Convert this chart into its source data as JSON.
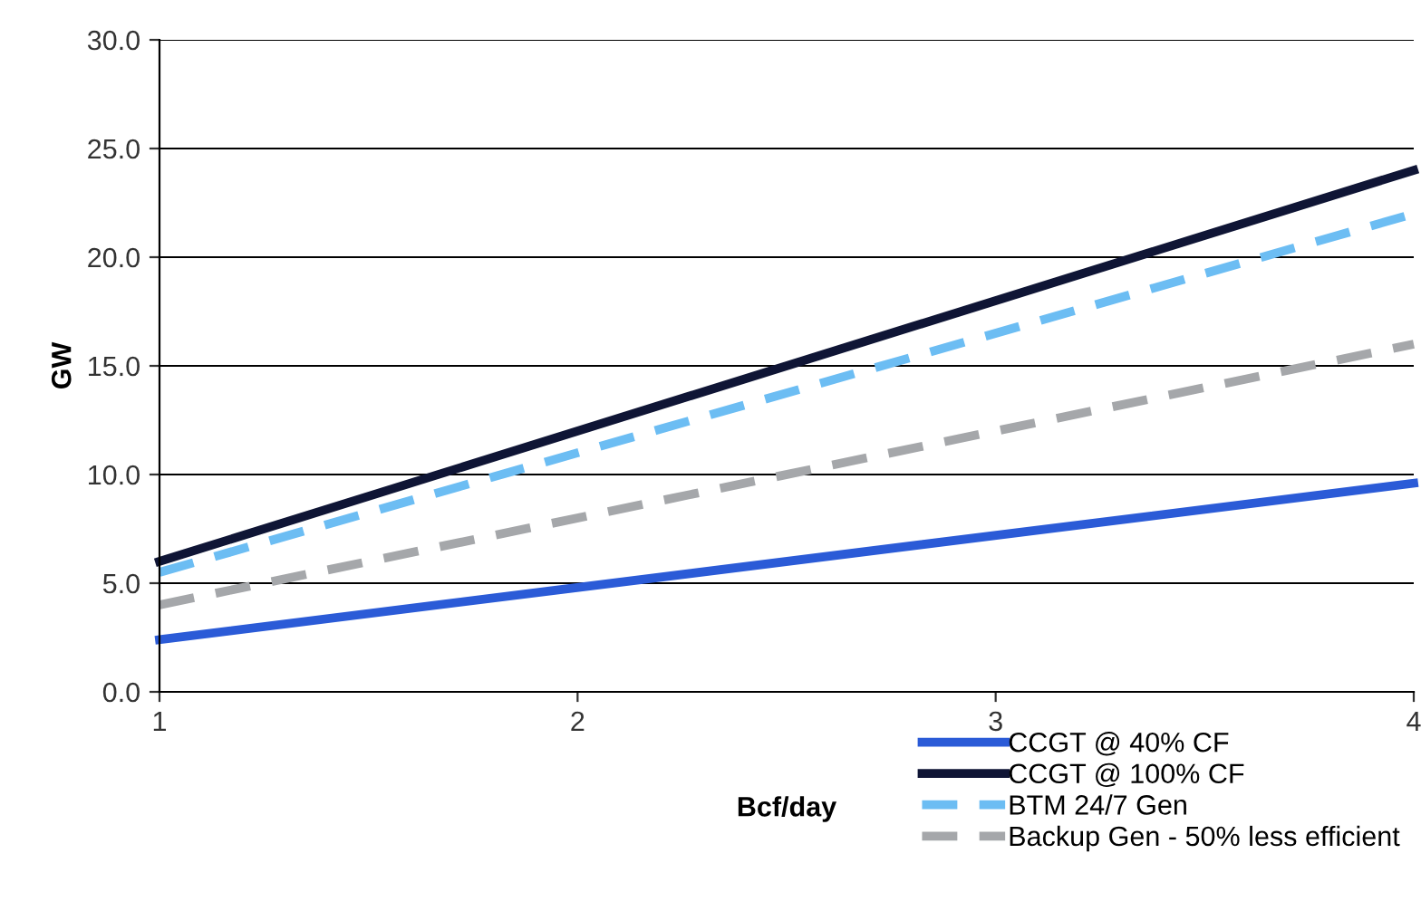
{
  "chart_data": {
    "type": "line",
    "xlabel": "Bcf/day",
    "ylabel": "GW",
    "x": [
      1,
      4
    ],
    "series": [
      {
        "name": "CCGT @ 40% CF",
        "color": "#2b5bd7",
        "values": [
          2.4,
          9.6
        ],
        "line_style": "solid"
      },
      {
        "name": "CCGT @ 100% CF",
        "color": "#0f1535",
        "values": [
          6.0,
          24.0
        ],
        "line_style": "solid"
      },
      {
        "name": "BTM 24/7 Gen",
        "color": "#6cbdf3",
        "values": [
          5.5,
          22.0
        ],
        "line_style": "dashed"
      },
      {
        "name": "Backup Gen - 50% less efficient",
        "color": "#a5a7aa",
        "values": [
          4.0,
          16.0
        ],
        "line_style": "dashed"
      }
    ],
    "xlim": [
      1,
      4
    ],
    "xticks": [
      1,
      2,
      3,
      4
    ],
    "ylim": [
      0,
      30
    ],
    "yticks": [
      {
        "value": 0,
        "label": "0.0"
      },
      {
        "value": 5,
        "label": "5.0"
      },
      {
        "value": 10,
        "label": "10.0"
      },
      {
        "value": 15,
        "label": "15.0"
      },
      {
        "value": 20,
        "label": "20.0"
      },
      {
        "value": 25,
        "label": "25.0"
      },
      {
        "value": 30,
        "label": "30.0"
      }
    ],
    "grid": "y",
    "legend": "bottom right",
    "marker": "none"
  }
}
